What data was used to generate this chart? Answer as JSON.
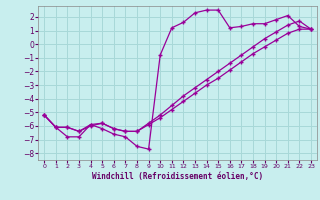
{
  "bg_color": "#c8eeee",
  "grid_color": "#a8d8d8",
  "line_color": "#990099",
  "xlabel": "Windchill (Refroidissement éolien,°C)",
  "xlim": [
    -0.5,
    23.5
  ],
  "ylim": [
    -8.5,
    2.8
  ],
  "xticks": [
    0,
    1,
    2,
    3,
    4,
    5,
    6,
    7,
    8,
    9,
    10,
    11,
    12,
    13,
    14,
    15,
    16,
    17,
    18,
    19,
    20,
    21,
    22,
    23
  ],
  "yticks": [
    -8,
    -7,
    -6,
    -5,
    -4,
    -3,
    -2,
    -1,
    0,
    1,
    2
  ],
  "line1_x": [
    0,
    1,
    2,
    3,
    4,
    5,
    6,
    7,
    8,
    9,
    10,
    11,
    12,
    13,
    14,
    15,
    16,
    17,
    18,
    19,
    20,
    21,
    22,
    23
  ],
  "line1_y": [
    -5.2,
    -6.1,
    -6.8,
    -6.8,
    -5.9,
    -6.2,
    -6.6,
    -6.8,
    -7.5,
    -7.7,
    -0.8,
    1.2,
    1.6,
    2.3,
    2.5,
    2.5,
    1.2,
    1.3,
    1.5,
    1.5,
    1.8,
    2.1,
    1.3,
    1.1
  ],
  "line2_x": [
    0,
    1,
    2,
    3,
    4,
    5,
    6,
    7,
    8,
    9,
    10,
    11,
    12,
    13,
    14,
    15,
    16,
    17,
    18,
    19,
    20,
    21,
    22,
    23
  ],
  "line2_y": [
    -5.2,
    -6.1,
    -6.1,
    -6.4,
    -6.0,
    -5.8,
    -6.2,
    -6.4,
    -6.4,
    -5.8,
    -5.2,
    -4.5,
    -3.8,
    -3.2,
    -2.6,
    -2.0,
    -1.4,
    -0.8,
    -0.2,
    0.4,
    0.9,
    1.4,
    1.7,
    1.1
  ],
  "line3_x": [
    0,
    1,
    2,
    3,
    4,
    5,
    6,
    7,
    8,
    9,
    10,
    11,
    12,
    13,
    14,
    15,
    16,
    17,
    18,
    19,
    20,
    21,
    22,
    23
  ],
  "line3_y": [
    -5.2,
    -6.1,
    -6.1,
    -6.4,
    -5.9,
    -5.8,
    -6.2,
    -6.4,
    -6.4,
    -5.9,
    -5.4,
    -4.8,
    -4.2,
    -3.6,
    -3.0,
    -2.5,
    -1.9,
    -1.3,
    -0.7,
    -0.2,
    0.3,
    0.8,
    1.1,
    1.1
  ]
}
